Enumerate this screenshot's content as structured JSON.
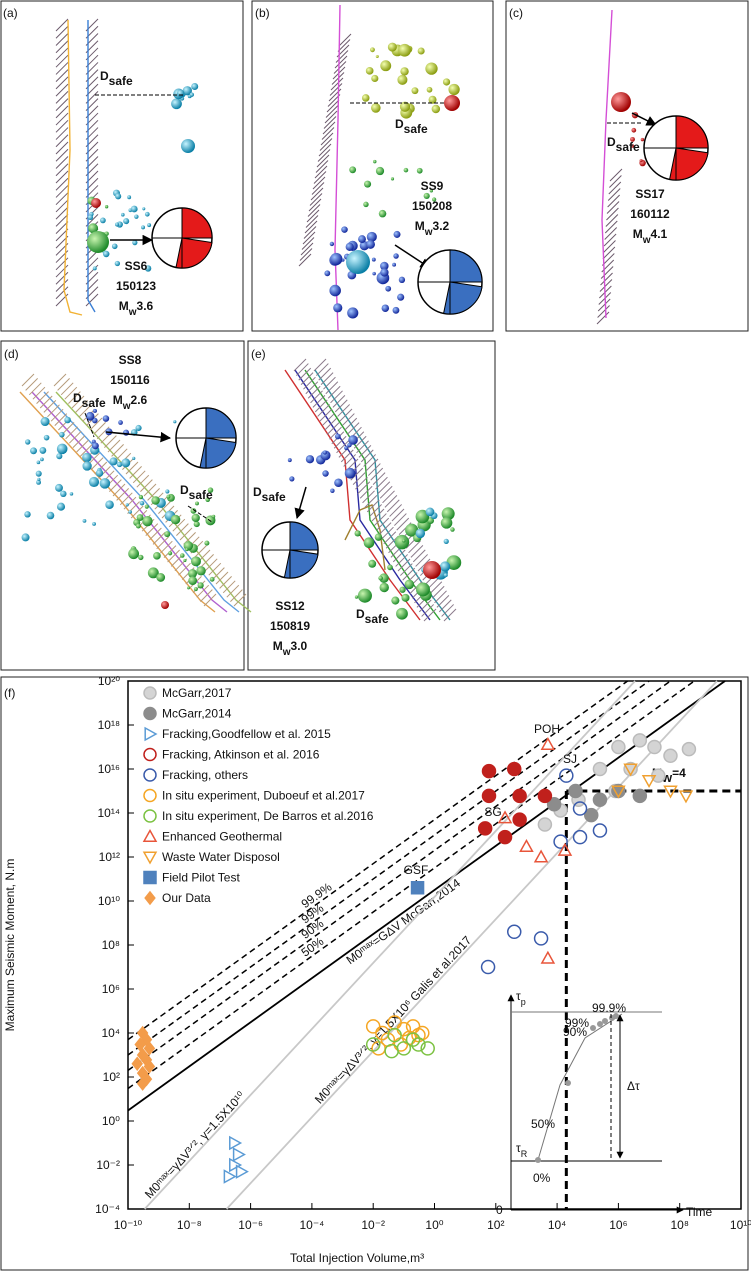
{
  "panels": [
    {
      "label": "(a)",
      "dsafe": [
        {
          "main": "D",
          "sub": "safe"
        }
      ],
      "event": {
        "id": "SS6",
        "date": "150123",
        "m": "M",
        "sub": "w",
        "mag": "3.6"
      }
    },
    {
      "label": "(b)",
      "dsafe": [
        {
          "main": "D",
          "sub": "safe"
        }
      ],
      "event": {
        "id": "SS9",
        "date": "150208",
        "m": "M",
        "sub": "w",
        "mag": "3.2"
      }
    },
    {
      "label": "(c)",
      "dsafe": [
        {
          "main": "D",
          "sub": "safe"
        }
      ],
      "event": {
        "id": "SS17",
        "date": "160112",
        "m": "M",
        "sub": "w",
        "mag": "4.1"
      }
    },
    {
      "label": "(d)",
      "dsafe": [
        {
          "main": "D",
          "sub": "safe"
        },
        {
          "main": "D",
          "sub": "safe"
        }
      ],
      "event": {
        "id": "SS8",
        "date": "150116",
        "m": "M",
        "sub": "w",
        "mag": "2.6"
      }
    },
    {
      "label": "(e)",
      "dsafe": [
        {
          "main": "D",
          "sub": "safe"
        },
        {
          "main": "D",
          "sub": "safe"
        }
      ],
      "event": {
        "id": "SS12",
        "date": "150819",
        "m": "M",
        "sub": "w",
        "mag": "3.0"
      }
    }
  ],
  "chart_data": {
    "type": "scatter",
    "panel_label": "(f)",
    "x_label": "Total Injection Volume,m³",
    "y_label": "Maximum Seismic Moment, N.m",
    "log_x": true,
    "log_y": true,
    "grid": false,
    "legend": "upper left",
    "xlim": [
      1e-10,
      10000000000.0
    ],
    "ylim": [
      0.0001,
      1e+20
    ],
    "xticks": [
      {
        "value": 1e-10,
        "label": "10⁻¹⁰"
      },
      {
        "value": 1e-08,
        "label": "10⁻⁸"
      },
      {
        "value": 1e-06,
        "label": "10⁻⁶"
      },
      {
        "value": 0.0001,
        "label": "10⁻⁴"
      },
      {
        "value": 0.01,
        "label": "10⁻²"
      },
      {
        "value": 1,
        "label": "10⁰"
      },
      {
        "value": 100,
        "label": "10²"
      },
      {
        "value": 10000,
        "label": "10⁴"
      },
      {
        "value": 1000000,
        "label": "10⁶"
      },
      {
        "value": 100000000,
        "label": "10⁸"
      },
      {
        "value": 10000000000,
        "label": "10¹⁰"
      }
    ],
    "yticks": [
      {
        "value": 0.0001,
        "label": "10⁻⁴"
      },
      {
        "value": 0.01,
        "label": "10⁻²"
      },
      {
        "value": 1,
        "label": "10⁰"
      },
      {
        "value": 100,
        "label": "10²"
      },
      {
        "value": 10000,
        "label": "10⁴"
      },
      {
        "value": 1000000,
        "label": "10⁶"
      },
      {
        "value": 100000000,
        "label": "10⁸"
      },
      {
        "value": 10000000000,
        "label": "10¹⁰"
      },
      {
        "value": 1000000000000,
        "label": "10¹²"
      },
      {
        "value": 100000000000000,
        "label": "10¹⁴"
      },
      {
        "value": 10000000000000000,
        "label": "10¹⁶"
      },
      {
        "value": 1000000000000000000,
        "label": "10¹⁸"
      },
      {
        "value": 100000000000000000000,
        "label": "10²⁰"
      }
    ],
    "series": [
      {
        "name": "McGarr,2017",
        "color": "#d4d4d4",
        "marker": "circle",
        "filled": true,
        "x": [
          1000000,
          5000000,
          15000000,
          50000000,
          200000000,
          250000,
          2500000,
          20000000,
          800000,
          50000,
          13000,
          4000
        ],
        "y": [
          1e+17,
          2e+17,
          1e+17,
          4e+16,
          8e+16,
          1e+16,
          1e+16,
          5000000000000000.0,
          1000000000000000.0,
          400000000000000.0,
          130000000000000.0,
          30000000000000.0
        ]
      },
      {
        "name": "McGarr,2014",
        "color": "#8c8c8c",
        "marker": "circle",
        "filled": true,
        "x": [
          40000,
          250000,
          1000000,
          130000,
          8000,
          5000000
        ],
        "y": [
          1000000000000000.0,
          400000000000000.0,
          1000000000000000.0,
          80000000000000.0,
          250000000000000.0,
          600000000000000.0
        ]
      },
      {
        "name": "Fracking,Goodfellow et al. 2015",
        "color": "#5b9bd5",
        "marker": "triangle-right",
        "filled": false,
        "x": [
          3e-07,
          4e-07,
          3e-07,
          5e-07,
          2e-07
        ],
        "y": [
          0.1,
          0.03,
          0.01,
          0.005,
          0.003
        ]
      },
      {
        "name": "Fracking, Atkinson et al. 2016",
        "color": "#c0201c",
        "marker": "circle",
        "filled": true,
        "x": [
          60,
          400,
          60,
          600,
          4000,
          45,
          600,
          200
        ],
        "y": [
          8000000000000000.0,
          1e+16,
          600000000000000.0,
          600000000000000.0,
          600000000000000.0,
          20000000000000.0,
          50000000000000.0,
          8000000000000.0
        ]
      },
      {
        "name": "Fracking, others",
        "color": "#3a5bab",
        "marker": "circle",
        "filled": false,
        "x": [
          20000,
          56000,
          13000,
          56000,
          250000,
          400,
          3000,
          56
        ],
        "y": [
          5000000000000000.0,
          160000000000000.0,
          5000000000000.0,
          8000000000000.0,
          16000000000000.0,
          400000000,
          200000000,
          10000000
        ]
      },
      {
        "name": "In situ experiment, Duboeuf et al.2017",
        "color": "#f5a623",
        "marker": "circle",
        "filled": false,
        "x": [
          0.01,
          0.02,
          0.05,
          0.1,
          0.2,
          0.3,
          0.03,
          0.08,
          0.15,
          0.4,
          0.015
        ],
        "y": [
          20000,
          10000,
          30000,
          15000,
          20000,
          8000,
          5000,
          3000,
          6000,
          10000,
          2000
        ]
      },
      {
        "name": "In situ experiment, De Barros et al.2016",
        "color": "#7cc242",
        "marker": "circle",
        "filled": false,
        "x": [
          0.01,
          0.04,
          0.1,
          0.3,
          0.6,
          0.05,
          0.2
        ],
        "y": [
          3000,
          1500,
          2000,
          3000,
          2000,
          8000,
          5000
        ]
      },
      {
        "name": "Enhanced Geothermal",
        "color": "#e8553a",
        "marker": "triangle-up",
        "filled": false,
        "x": [
          5000,
          1000,
          3000,
          18000,
          5000,
          200
        ],
        "y": [
          1.3e+17,
          3000000000000.0,
          1000000000000.0,
          2000000000000.0,
          25000000,
          60000000000000.0
        ]
      },
      {
        "name": "Waste Water Disposol",
        "color": "#f0a030",
        "marker": "triangle-down",
        "filled": false,
        "x": [
          2500000,
          1000000,
          50000000,
          160000000,
          10000000
        ],
        "y": [
          1e+16,
          1000000000000000.0,
          1000000000000000.0,
          600000000000000.0,
          3000000000000000.0
        ]
      },
      {
        "name": "Field Pilot Test",
        "color": "#4f81bd",
        "marker": "square",
        "filled": true,
        "x": [
          0.28
        ],
        "y": [
          40000000000
        ]
      },
      {
        "name": "Our Data",
        "color": "#f39c4a",
        "marker": "diamond",
        "filled": true,
        "x": [
          3e-10,
          4e-10,
          2.5e-10,
          5e-10,
          3e-10,
          4e-10,
          2e-10,
          5e-10,
          3e-10,
          4e-10,
          3e-10
        ],
        "y": [
          10000,
          5000,
          3000,
          2000,
          1000,
          600,
          400,
          300,
          150,
          80,
          50
        ]
      }
    ],
    "reference_lines": [
      {
        "label": "M0ᵐᵃˣ=GΔV McGarr,2014",
        "color": "#000000",
        "dashed": false,
        "x": [
          1e-10,
          3000000000
        ],
        "y": [
          3,
          1e+20
        ]
      },
      {
        "label": "50%",
        "color": "#000000",
        "dashed": true,
        "x": [
          1e-10,
          300000000
        ],
        "y": [
          30,
          1e+20
        ]
      },
      {
        "label": "90%",
        "color": "#000000",
        "dashed": true,
        "x": [
          1e-10,
          50000000
        ],
        "y": [
          200,
          1e+20
        ]
      },
      {
        "label": "99%",
        "color": "#000000",
        "dashed": true,
        "x": [
          1e-10,
          10000000
        ],
        "y": [
          1000,
          1e+20
        ]
      },
      {
        "label": "99.9%",
        "color": "#000000",
        "dashed": true,
        "x": [
          1e-10,
          2000000
        ],
        "y": [
          5000,
          1e+20
        ]
      },
      {
        "label": "M0ᵐᵃˣ=γΔV³ᐟ², γ=1.5X10¹⁰",
        "color": "#c8c8c8",
        "dashed": false,
        "x": [
          3.5e-10,
          3500000
        ],
        "y": [
          0.0001,
          1e+20
        ]
      },
      {
        "label": "M0ᵐᵃˣ=γΔV³ᐟ², γ=1.5X10⁶  Galis et al.2017",
        "color": "#c8c8c8",
        "dashed": false,
        "x": [
          1.65e-07,
          1650000000
        ],
        "y": [
          0.0001,
          1e+20
        ]
      }
    ],
    "threshold": {
      "x": 20000,
      "y": 1000000000000000.0,
      "m": "M",
      "sub": "w",
      "rest": "=4"
    },
    "annotations": [
      "POH",
      "SJ",
      "SG",
      "GSF"
    ],
    "inset": {
      "tau_p": {
        "main": "τ",
        "sub": "p"
      },
      "tau_r": {
        "main": "τ",
        "sub": "R"
      },
      "delta": "Δτ",
      "origin": "0",
      "time": "Time",
      "pct": [
        "0%",
        "50%",
        "90%",
        "99%",
        "99.9%"
      ]
    }
  }
}
